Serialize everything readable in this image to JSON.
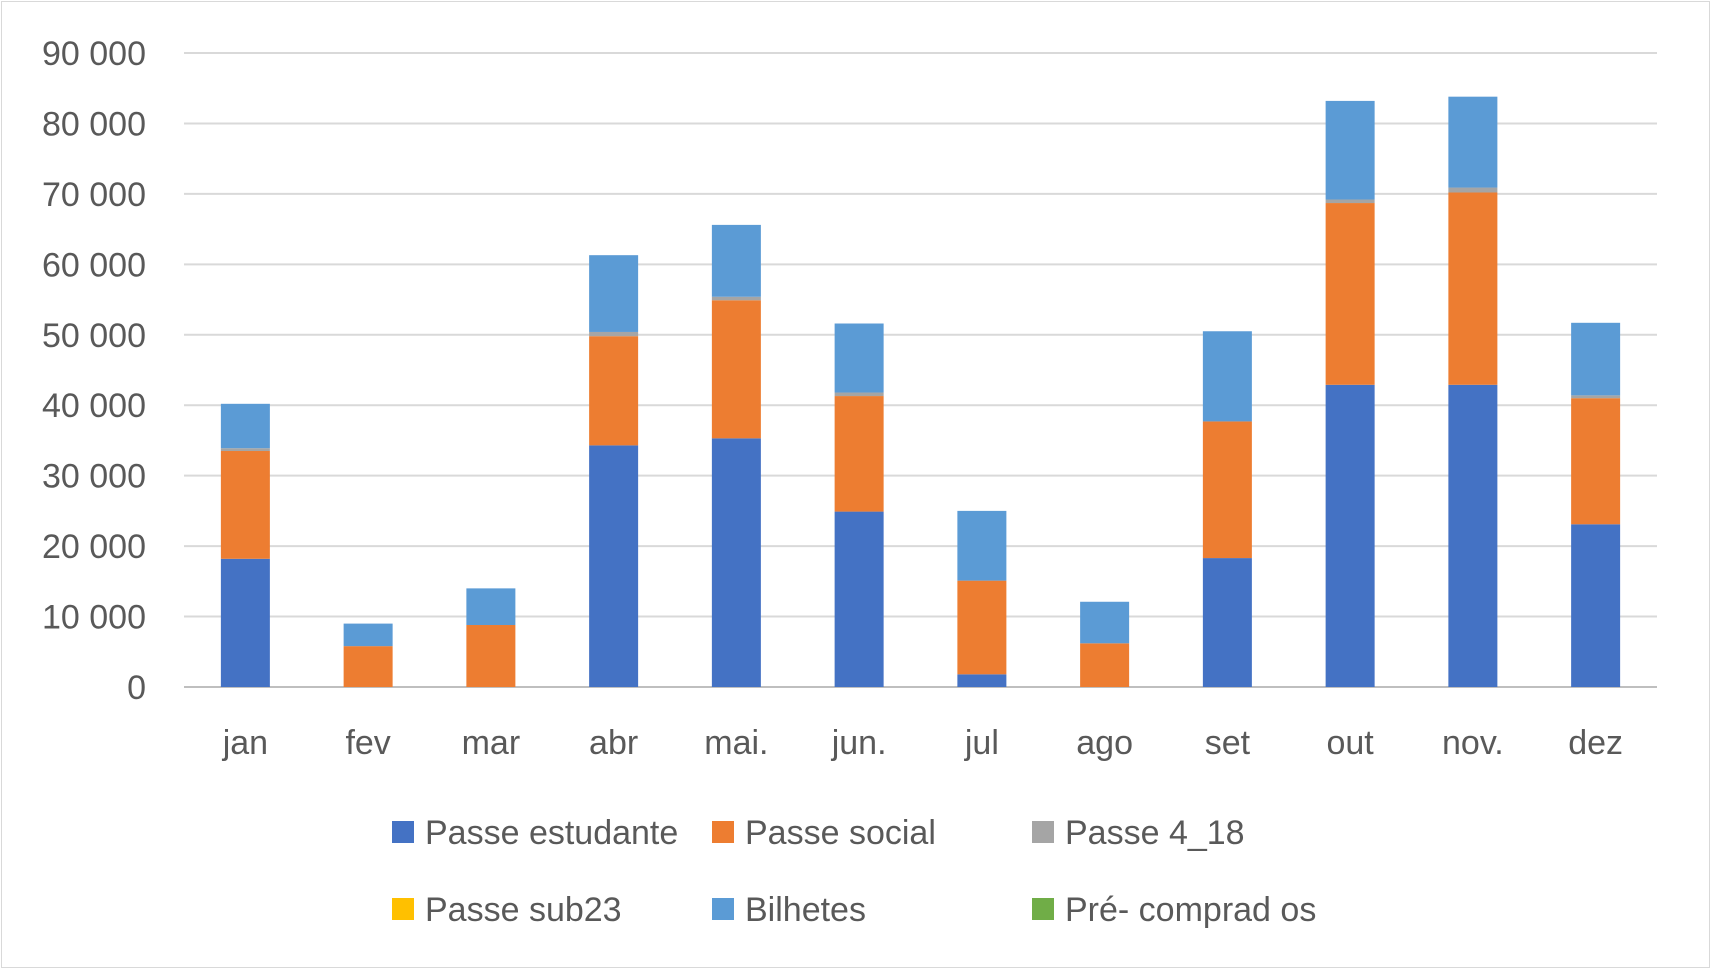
{
  "chart_data": {
    "type": "bar",
    "stacked": true,
    "categories": [
      "jan",
      "fev",
      "mar",
      "abr",
      "mai.",
      "jun.",
      "jul",
      "ago",
      "set",
      "out",
      "nov.",
      "dez"
    ],
    "series": [
      {
        "name": "Passe estudante",
        "color": "#4472C4",
        "values": [
          18200,
          0,
          0,
          34300,
          35300,
          24900,
          1800,
          0,
          18300,
          42900,
          42900,
          23100
        ]
      },
      {
        "name": "Passe social",
        "color": "#ED7D31",
        "values": [
          15300,
          5800,
          8800,
          15500,
          19600,
          16400,
          13300,
          6200,
          19400,
          25800,
          27300,
          17900
        ]
      },
      {
        "name": "Passe 4_18",
        "color": "#A5A5A5",
        "values": [
          400,
          0,
          0,
          600,
          500,
          500,
          0,
          0,
          0,
          500,
          700,
          400
        ]
      },
      {
        "name": "Passe sub23",
        "color": "#FFC000",
        "values": [
          0,
          0,
          0,
          0,
          0,
          0,
          0,
          0,
          0,
          0,
          0,
          0
        ]
      },
      {
        "name": "Bilhetes",
        "color": "#5B9BD5",
        "values": [
          6300,
          3200,
          5200,
          10900,
          10200,
          9800,
          9900,
          5900,
          12800,
          14000,
          12900,
          10300
        ]
      },
      {
        "name": "Pré- comprad os",
        "color": "#70AD47",
        "values": [
          0,
          0,
          0,
          0,
          0,
          0,
          0,
          0,
          0,
          0,
          0,
          0
        ]
      }
    ],
    "y_ticks": [
      "0",
      "10 000",
      "20 000",
      "30 000",
      "40 000",
      "50 000",
      "60 000",
      "70 000",
      "80 000",
      "90 000"
    ],
    "ylim": [
      0,
      90000
    ],
    "grid": true,
    "legend_position": "bottom"
  }
}
